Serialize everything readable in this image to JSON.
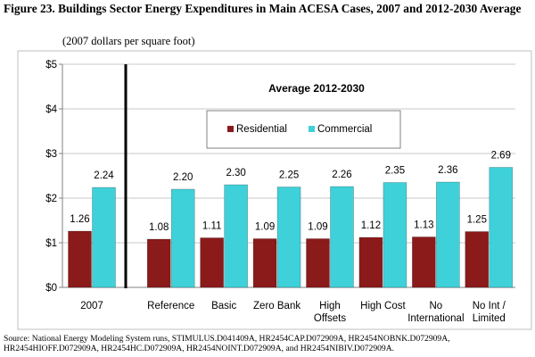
{
  "figure": {
    "title": "Figure 23.  Buildings Sector Energy Expenditures in Main ACESA Cases, 2007 and 2012-2030 Average",
    "units": "(2007 dollars per square foot)",
    "source": "Source:  National Energy Modeling System runs, STIMULUS.D041409A, HR2454CAP.D072909A, HR2454NOBNK.D072909A, HR2454HIOFF.D072909A, HR2454HC.D072909A, HR2454NOINT.D072909A, and HR2454NIBIV.D072909A."
  },
  "chart_data": {
    "type": "bar",
    "title": "Average 2012-2030",
    "xlabel": "",
    "ylabel": "",
    "ylim": [
      0,
      5
    ],
    "yticks": [
      0,
      1,
      2,
      3,
      4,
      5
    ],
    "ytick_labels": [
      "$0",
      "$1",
      "$2",
      "$3",
      "$4",
      "$5"
    ],
    "grid": true,
    "legend_position": "upper-center",
    "categories": [
      "2007",
      "Reference",
      "Basic",
      "Zero Bank",
      "High Offsets",
      "High Cost",
      "No International",
      "No Int / Limited"
    ],
    "category_labels": [
      [
        "2007"
      ],
      [
        "Reference"
      ],
      [
        "Basic"
      ],
      [
        "Zero Bank"
      ],
      [
        "High",
        "Offsets"
      ],
      [
        "High Cost"
      ],
      [
        "No",
        "International"
      ],
      [
        "No Int /",
        "Limited"
      ]
    ],
    "series": [
      {
        "name": "Residential",
        "color": "#8b1a1a",
        "values": [
          1.26,
          1.08,
          1.11,
          1.09,
          1.09,
          1.12,
          1.13,
          1.25
        ]
      },
      {
        "name": "Commercial",
        "color": "#3fd1d9",
        "values": [
          2.24,
          2.2,
          2.3,
          2.25,
          2.26,
          2.35,
          2.36,
          2.69
        ]
      }
    ],
    "value_format": "0.00",
    "divider_after_category": "2007"
  }
}
